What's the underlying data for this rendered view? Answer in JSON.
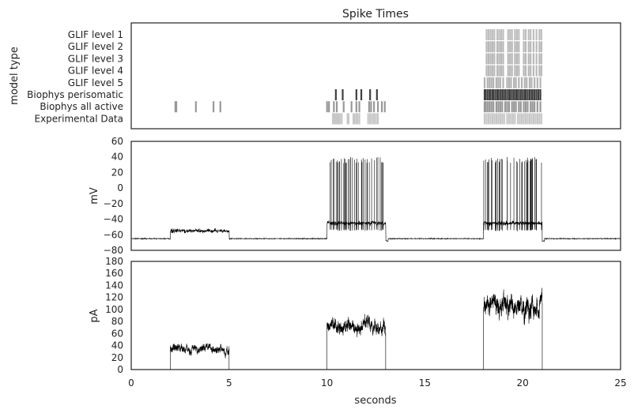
{
  "chart_data": [
    {
      "type": "raster",
      "title": "Spike Times",
      "ylabel": "model type",
      "rows": [
        "GLIF level 1",
        "GLIF level 2",
        "GLIF level 3",
        "GLIF level 4",
        "GLIF level 5",
        "Biophys perisomatic",
        "Biophys all active",
        "Experimental Data"
      ],
      "xlim": [
        0,
        25
      ],
      "spikes": {
        "GLIF level 1": [
          18.15,
          18.25,
          18.35,
          18.45,
          18.55,
          18.7,
          18.8,
          18.9,
          19.0,
          19.25,
          19.35,
          19.45,
          19.6,
          19.7,
          19.8,
          20.05,
          20.15,
          20.3,
          20.4,
          20.55,
          20.7,
          20.85,
          20.95
        ],
        "GLIF level 2": [
          18.15,
          18.25,
          18.35,
          18.45,
          18.55,
          18.7,
          18.8,
          18.9,
          19.0,
          19.25,
          19.35,
          19.45,
          19.6,
          19.7,
          19.8,
          20.05,
          20.15,
          20.3,
          20.4,
          20.55,
          20.7,
          20.85,
          20.95
        ],
        "GLIF level 3": [
          18.15,
          18.25,
          18.35,
          18.45,
          18.55,
          18.7,
          18.8,
          18.9,
          19.0,
          19.25,
          19.35,
          19.45,
          19.6,
          19.7,
          19.8,
          20.05,
          20.15,
          20.3,
          20.4,
          20.55,
          20.7,
          20.85,
          20.95
        ],
        "GLIF level 4": [
          18.15,
          18.25,
          18.35,
          18.45,
          18.55,
          18.7,
          18.8,
          18.9,
          19.0,
          19.25,
          19.35,
          19.45,
          19.6,
          19.7,
          19.8,
          20.05,
          20.15,
          20.3,
          20.4,
          20.55,
          20.7,
          20.85,
          20.95
        ],
        "GLIF level 5": [
          18.05,
          18.2,
          18.3,
          18.4,
          18.5,
          18.65,
          18.75,
          18.85,
          19.0,
          19.2,
          19.3,
          19.4,
          19.55,
          19.65,
          19.8,
          19.95,
          20.1,
          20.2,
          20.35,
          20.45,
          20.6,
          20.75,
          20.9
        ],
        "Biophys perisomatic": [
          10.45,
          10.8,
          11.5,
          11.75,
          12.2,
          12.55,
          18.05,
          18.1,
          18.2,
          18.3,
          18.35,
          18.45,
          18.5,
          18.6,
          18.7,
          18.75,
          18.85,
          18.95,
          19.0,
          19.1,
          19.2,
          19.3,
          19.35,
          19.45,
          19.55,
          19.65,
          19.7,
          19.8,
          19.9,
          20.0,
          20.1,
          20.15,
          20.25,
          20.35,
          20.45,
          20.5,
          20.6,
          20.7,
          20.8,
          20.9
        ],
        "Biophys all active": [
          2.25,
          2.3,
          3.3,
          4.2,
          4.55,
          10.0,
          10.1,
          10.35,
          10.5,
          10.85,
          11.25,
          11.5,
          11.65,
          12.15,
          12.25,
          12.4,
          12.6,
          12.8,
          12.95,
          18.05,
          18.1,
          18.2,
          18.3,
          18.4,
          18.5,
          18.65,
          18.75,
          18.85,
          18.95,
          19.1,
          19.2,
          19.3,
          19.45,
          19.55,
          19.65,
          19.8,
          19.9,
          20.05,
          20.15,
          20.25,
          20.4,
          20.5,
          20.6,
          20.75,
          20.9
        ],
        "Experimental Data": [
          10.3,
          10.35,
          10.4,
          10.45,
          10.5,
          10.55,
          10.6,
          10.65,
          10.75,
          11.05,
          11.1,
          11.35,
          11.4,
          11.5,
          11.55,
          11.65,
          12.1,
          12.2,
          12.3,
          12.4,
          12.5,
          12.6,
          18.05,
          18.15,
          18.25,
          18.35,
          18.45,
          18.55,
          18.65,
          18.75,
          18.85,
          18.95,
          19.05,
          19.2,
          19.3,
          19.4,
          19.5,
          19.6,
          19.75,
          19.85,
          19.95,
          20.05,
          20.15,
          20.25,
          20.35,
          20.45,
          20.55,
          20.65,
          20.75,
          20.85,
          20.95
        ]
      },
      "tone": [
        0.75,
        0.72,
        0.72,
        0.72,
        0.7,
        0.25,
        0.6,
        0.78
      ]
    },
    {
      "type": "line",
      "xlabel": "",
      "ylabel": "mV",
      "xlim": [
        0,
        25
      ],
      "ylim": [
        -80,
        60
      ],
      "yticks": [
        -80,
        -60,
        -40,
        -20,
        0,
        20,
        40,
        60
      ],
      "rest_mV": -65,
      "segments": [
        {
          "start": 2,
          "end": 5,
          "plateau_mV": -55
        },
        {
          "start": 10,
          "end": 13,
          "plateau_mV": -45
        },
        {
          "start": 18,
          "end": 21,
          "plateau_mV": -45
        }
      ],
      "spike_peak_mV": 40,
      "spike_trough_mV": -54,
      "color": "#000000"
    },
    {
      "type": "line",
      "xlabel": "seconds",
      "ylabel": "pA",
      "xlim": [
        0,
        25
      ],
      "ylim": [
        0,
        180
      ],
      "xticks": [
        0,
        5,
        10,
        15,
        20,
        25
      ],
      "yticks": [
        0,
        20,
        40,
        60,
        80,
        100,
        120,
        140,
        160,
        180
      ],
      "segments": [
        {
          "start": 2,
          "end": 5,
          "mean_pA": 35,
          "noise_pA": 8
        },
        {
          "start": 10,
          "end": 13,
          "mean_pA": 72,
          "noise_pA": 13
        },
        {
          "start": 18,
          "end": 21,
          "mean_pA": 105,
          "noise_pA": 20
        }
      ],
      "color": "#000000"
    }
  ]
}
